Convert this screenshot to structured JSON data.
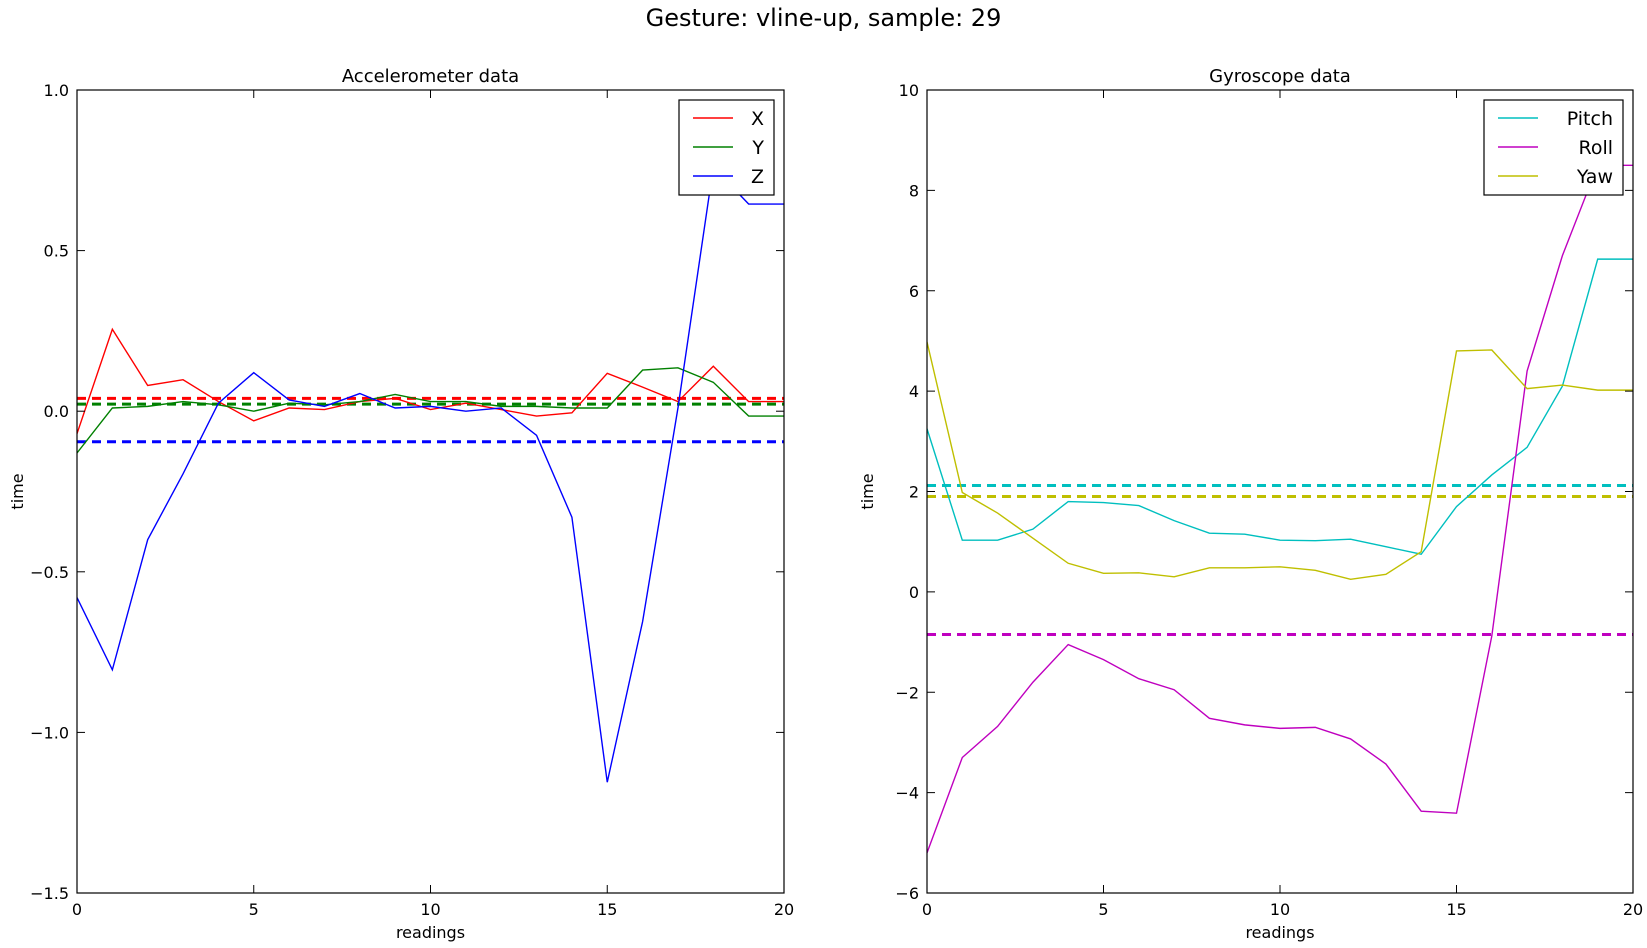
{
  "figure": {
    "suptitle": "Gesture: vline-up, sample: 29"
  },
  "chart_data": [
    {
      "type": "line",
      "title": "Accelerometer data",
      "xlabel": "readings",
      "ylabel": "time",
      "xlim": [
        0,
        20
      ],
      "ylim": [
        -1.5,
        1.0
      ],
      "xticks": [
        0,
        5,
        10,
        15,
        20
      ],
      "xtick_labels": [
        "0",
        "5",
        "10",
        "15",
        "20"
      ],
      "yticks": [
        -1.5,
        -1.0,
        -0.5,
        0.0,
        0.5,
        1.0
      ],
      "ytick_labels": [
        "−1.5",
        "−1.0",
        "−0.5",
        "0.0",
        "0.5",
        "1.0"
      ],
      "grid": false,
      "legend": "top-right",
      "x": [
        0,
        1,
        2,
        3,
        4,
        5,
        6,
        7,
        8,
        9,
        10,
        11,
        12,
        13,
        14,
        15,
        16,
        17,
        18,
        19,
        20
      ],
      "series": [
        {
          "name": "X",
          "color": "#ff0000",
          "values": [
            -0.07,
            0.255,
            0.08,
            0.098,
            0.03,
            -0.03,
            0.01,
            0.005,
            0.03,
            0.04,
            0.005,
            0.025,
            0.005,
            -0.015,
            -0.005,
            0.118,
            0.075,
            0.03,
            0.14,
            0.03,
            0.03
          ]
        },
        {
          "name": "Y",
          "color": "#008000",
          "values": [
            -0.13,
            0.01,
            0.015,
            0.03,
            0.02,
            0.0,
            0.025,
            0.02,
            0.03,
            0.052,
            0.03,
            0.03,
            0.015,
            0.015,
            0.01,
            0.01,
            0.128,
            0.135,
            0.09,
            -0.015,
            -0.015
          ]
        },
        {
          "name": "Z",
          "color": "#0000ff",
          "values": [
            -0.58,
            -0.805,
            -0.4,
            -0.195,
            0.025,
            0.12,
            0.035,
            0.015,
            0.055,
            0.01,
            0.015,
            0.0,
            0.01,
            -0.075,
            -0.33,
            -1.155,
            -0.655,
            0.01,
            0.76,
            0.645,
            0.645
          ]
        }
      ],
      "means": [
        {
          "series": "X",
          "color": "#ff0000",
          "value": 0.04
        },
        {
          "series": "Y",
          "color": "#008000",
          "value": 0.022
        },
        {
          "series": "Z",
          "color": "#0000ff",
          "value": -0.095
        }
      ]
    },
    {
      "type": "line",
      "title": "Gyroscope data",
      "xlabel": "readings",
      "ylabel": "time",
      "xlim": [
        0,
        20
      ],
      "ylim": [
        -6,
        10
      ],
      "xticks": [
        0,
        5,
        10,
        15,
        20
      ],
      "xtick_labels": [
        "0",
        "5",
        "10",
        "15",
        "20"
      ],
      "yticks": [
        -6,
        -4,
        -2,
        0,
        2,
        4,
        6,
        8,
        10
      ],
      "ytick_labels": [
        "−6",
        "−4",
        "−2",
        "0",
        "2",
        "4",
        "6",
        "8",
        "10"
      ],
      "grid": false,
      "legend": "top-right",
      "x": [
        0,
        1,
        2,
        3,
        4,
        5,
        6,
        7,
        8,
        9,
        10,
        11,
        12,
        13,
        14,
        15,
        16,
        17,
        18,
        19,
        20
      ],
      "series": [
        {
          "name": "Pitch",
          "color": "#00bfbf",
          "values": [
            3.25,
            1.03,
            1.03,
            1.25,
            1.8,
            1.78,
            1.72,
            1.42,
            1.17,
            1.15,
            1.03,
            1.02,
            1.05,
            0.9,
            0.75,
            1.7,
            2.33,
            2.88,
            4.1,
            6.63,
            6.63
          ]
        },
        {
          "name": "Roll",
          "color": "#bf00bf",
          "values": [
            -5.2,
            -3.3,
            -2.68,
            -1.8,
            -1.05,
            -1.35,
            -1.73,
            -1.95,
            -2.52,
            -2.65,
            -2.72,
            -2.7,
            -2.93,
            -3.43,
            -4.37,
            -4.41,
            -0.88,
            4.4,
            6.7,
            8.5,
            8.5
          ]
        },
        {
          "name": "Yaw",
          "color": "#bfbf00",
          "values": [
            4.98,
            1.98,
            1.57,
            1.07,
            0.57,
            0.37,
            0.38,
            0.3,
            0.48,
            0.48,
            0.5,
            0.43,
            0.25,
            0.35,
            0.8,
            4.8,
            4.82,
            4.05,
            4.12,
            4.02,
            4.02
          ]
        }
      ],
      "means": [
        {
          "series": "Pitch",
          "color": "#00bfbf",
          "value": 2.12
        },
        {
          "series": "Roll",
          "color": "#bf00bf",
          "value": -0.85
        },
        {
          "series": "Yaw",
          "color": "#bfbf00",
          "value": 1.9
        }
      ]
    }
  ]
}
